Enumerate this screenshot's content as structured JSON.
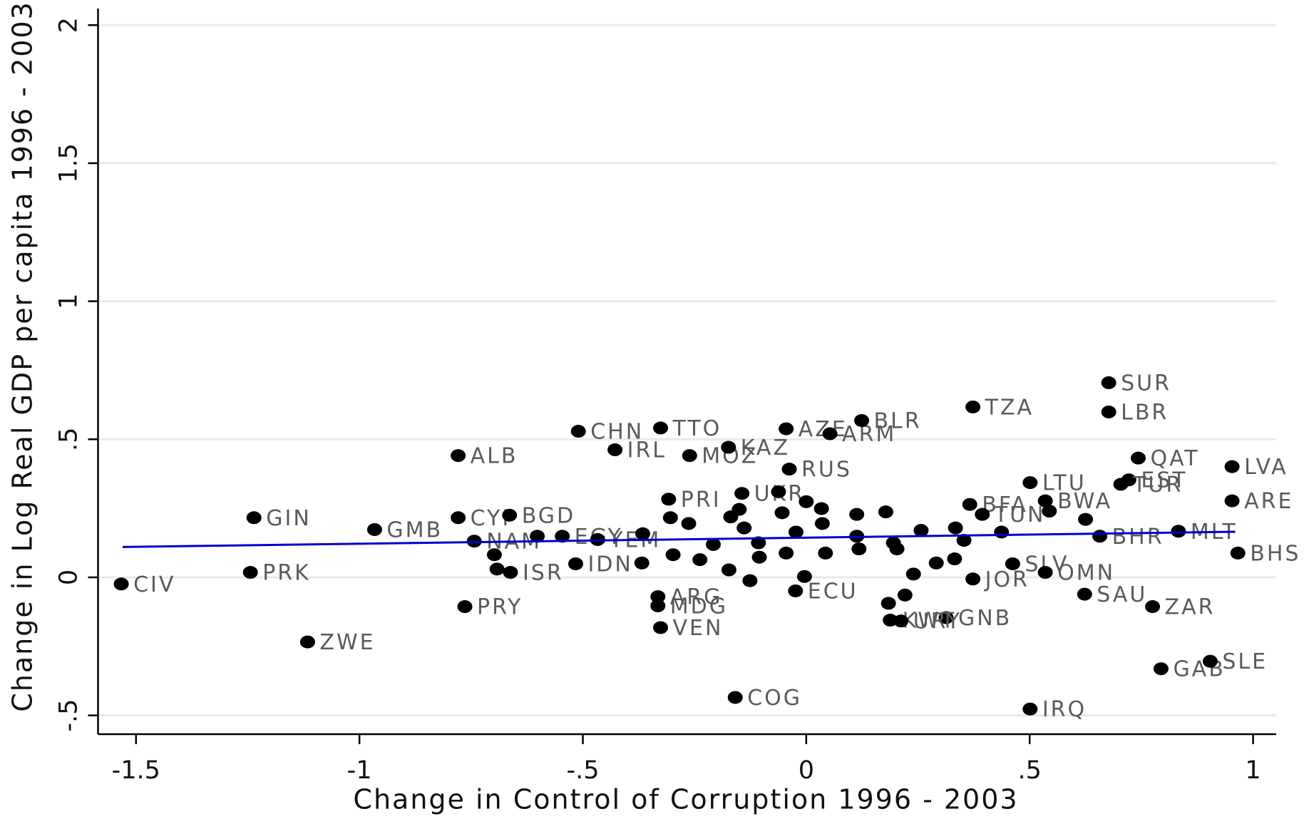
{
  "chart_data": {
    "type": "scatter",
    "x_label": "Change in Control of Corruption 1996 - 2003",
    "y_label": "Change in Log Real GDP per capita 1996 - 2003",
    "xlim": [
      -1.585,
      1.047
    ],
    "ylim": [
      -0.568,
      2.06
    ],
    "xticks": [
      -1.5,
      -1,
      {
        "value": -0.5,
        "label": "-.5"
      },
      0,
      {
        "value": 0.5,
        "label": ".5"
      },
      1
    ],
    "yticks": [
      {
        "value": -0.5,
        "label": "-.5"
      },
      0,
      {
        "value": 0.5,
        "label": ".5"
      },
      1,
      1.5,
      2
    ],
    "grid": true,
    "color": "#000000",
    "labels": [
      "CIV",
      "PRK",
      "GIN",
      "ZWE",
      "GMB",
      "ALB",
      "CYP",
      "PRY",
      "BGD",
      "NAM",
      "ISR",
      "IDN",
      "EGY",
      "CHN",
      "IRL",
      "YEM",
      "TTO",
      "MOZ",
      "KAZ",
      "ARG",
      "MDG",
      "VEN",
      "PRI",
      "COG",
      "AZE",
      "ARM",
      "BLR",
      "RUS",
      "UKR",
      "ECU",
      "TZA",
      "SUR",
      "LBR",
      "QAT",
      "LVA",
      "ARE",
      "BHS",
      "MLT",
      "BHR",
      "EST",
      "TUR",
      "LTU",
      "BWA",
      "BFA",
      "TUN",
      "SLV",
      "OMN",
      "JOR",
      "SAU",
      "ZAR",
      "GAB",
      "SLE",
      "IRQ",
      "GNB",
      "KWT",
      "URY",
      null,
      null,
      null,
      null,
      null,
      null,
      null,
      null,
      null,
      null,
      null,
      null,
      null,
      null,
      null,
      null,
      null,
      null,
      null,
      null,
      null,
      null,
      null,
      null,
      null,
      null,
      null,
      null,
      null,
      null,
      null,
      null,
      null,
      null,
      null,
      null,
      null,
      null,
      null,
      null,
      null,
      null
    ],
    "x": [
      -1.533,
      -1.244,
      -1.236,
      -1.116,
      -0.966,
      -0.779,
      -0.779,
      -0.764,
      -0.664,
      -0.743,
      -0.662,
      -0.516,
      -0.546,
      -0.51,
      -0.428,
      -0.467,
      -0.326,
      -0.261,
      -0.174,
      -0.332,
      -0.332,
      -0.326,
      -0.308,
      -0.159,
      -0.045,
      0.053,
      0.124,
      -0.038,
      -0.144,
      -0.024,
      0.373,
      0.677,
      0.677,
      0.743,
      0.953,
      0.953,
      0.966,
      0.833,
      0.657,
      0.722,
      0.704,
      0.501,
      0.535,
      0.366,
      0.394,
      0.462,
      0.535,
      0.373,
      0.623,
      0.775,
      0.794,
      0.904,
      0.501,
      0.313,
      0.188,
      0.212,
      -0.062,
      -0.054,
      0.0,
      0.034,
      0.113,
      0.178,
      0.195,
      0.257,
      0.334,
      0.332,
      0.291,
      0.24,
      0.203,
      0.113,
      0.036,
      -0.045,
      -0.105,
      -0.107,
      -0.139,
      -0.169,
      -0.208,
      -0.238,
      -0.263,
      -0.173,
      -0.126,
      -0.004,
      0.437,
      0.544,
      0.625,
      0.353,
      -0.366,
      -0.698,
      -0.692,
      -0.602,
      -0.368,
      -0.298,
      -0.304,
      -0.15,
      -0.023,
      0.043,
      0.118,
      0.184,
      0.221
    ],
    "y": [
      -0.024,
      0.018,
      0.216,
      -0.234,
      0.173,
      0.441,
      0.216,
      -0.106,
      0.225,
      0.131,
      0.018,
      0.049,
      0.149,
      0.529,
      0.462,
      0.137,
      0.541,
      0.441,
      0.471,
      -0.07,
      -0.103,
      -0.182,
      0.283,
      -0.435,
      0.538,
      0.52,
      0.568,
      0.392,
      0.304,
      -0.049,
      0.617,
      0.705,
      0.599,
      0.432,
      0.401,
      0.277,
      0.088,
      0.167,
      0.149,
      0.353,
      0.337,
      0.343,
      0.277,
      0.264,
      0.228,
      0.049,
      0.018,
      -0.006,
      -0.061,
      -0.106,
      -0.331,
      -0.304,
      -0.477,
      -0.146,
      -0.155,
      -0.158,
      0.31,
      0.234,
      0.274,
      0.249,
      0.228,
      0.237,
      0.125,
      0.17,
      0.179,
      0.067,
      0.052,
      0.012,
      0.103,
      0.149,
      0.195,
      0.088,
      0.073,
      0.125,
      0.179,
      0.219,
      0.119,
      0.064,
      0.195,
      0.027,
      -0.012,
      0.003,
      0.164,
      0.24,
      0.21,
      0.134,
      0.158,
      0.082,
      0.03,
      0.149,
      0.052,
      0.082,
      0.216,
      0.246,
      0.164,
      0.088,
      0.103,
      -0.094,
      -0.064
    ],
    "fit": {
      "color": "#0000cc",
      "x": [
        -1.53,
        0.96
      ],
      "y": [
        0.11,
        0.165
      ]
    }
  }
}
